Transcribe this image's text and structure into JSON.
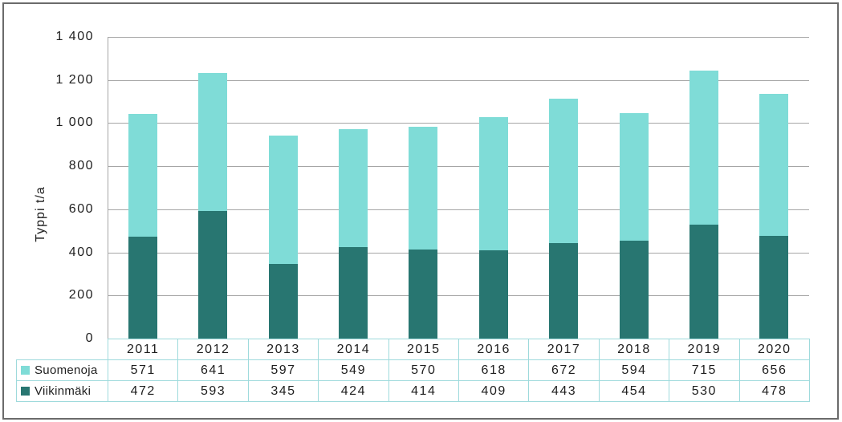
{
  "frame": {
    "border_color": "#6b6b6b",
    "background": "#ffffff"
  },
  "chart_data": {
    "type": "bar",
    "stacked": true,
    "title": "",
    "ylabel": "Typpi t/a",
    "xlabel": "",
    "ylim": [
      0,
      1400
    ],
    "ytick_interval": 200,
    "grid": true,
    "gridline_color": "#a6a6a6",
    "axis_line_color": "#a6a6a6",
    "table_border_color": "#9edadc",
    "text_color": "#1e1e1e",
    "legend_position": "table-rows-left",
    "yticks": [
      {
        "value": 1400,
        "label": "1 400"
      },
      {
        "value": 1200,
        "label": "1 200"
      },
      {
        "value": 1000,
        "label": "1 000"
      },
      {
        "value": 800,
        "label": "800"
      },
      {
        "value": 600,
        "label": "600"
      },
      {
        "value": 400,
        "label": "400"
      },
      {
        "value": 200,
        "label": "200"
      },
      {
        "value": 0,
        "label": "0"
      }
    ],
    "categories": [
      "2011",
      "2012",
      "2013",
      "2014",
      "2015",
      "2016",
      "2017",
      "2018",
      "2019",
      "2020"
    ],
    "series": [
      {
        "name": "Suomenoja",
        "slug": "suomenoja",
        "color": "#7fdcd7",
        "stack_position": "top",
        "values": [
          571,
          641,
          597,
          549,
          570,
          618,
          672,
          594,
          715,
          656
        ]
      },
      {
        "name": "Viikinmäki",
        "slug": "viikinmaki",
        "color": "#287671",
        "stack_position": "bottom",
        "values": [
          472,
          593,
          345,
          424,
          414,
          409,
          443,
          454,
          530,
          478
        ]
      }
    ]
  }
}
